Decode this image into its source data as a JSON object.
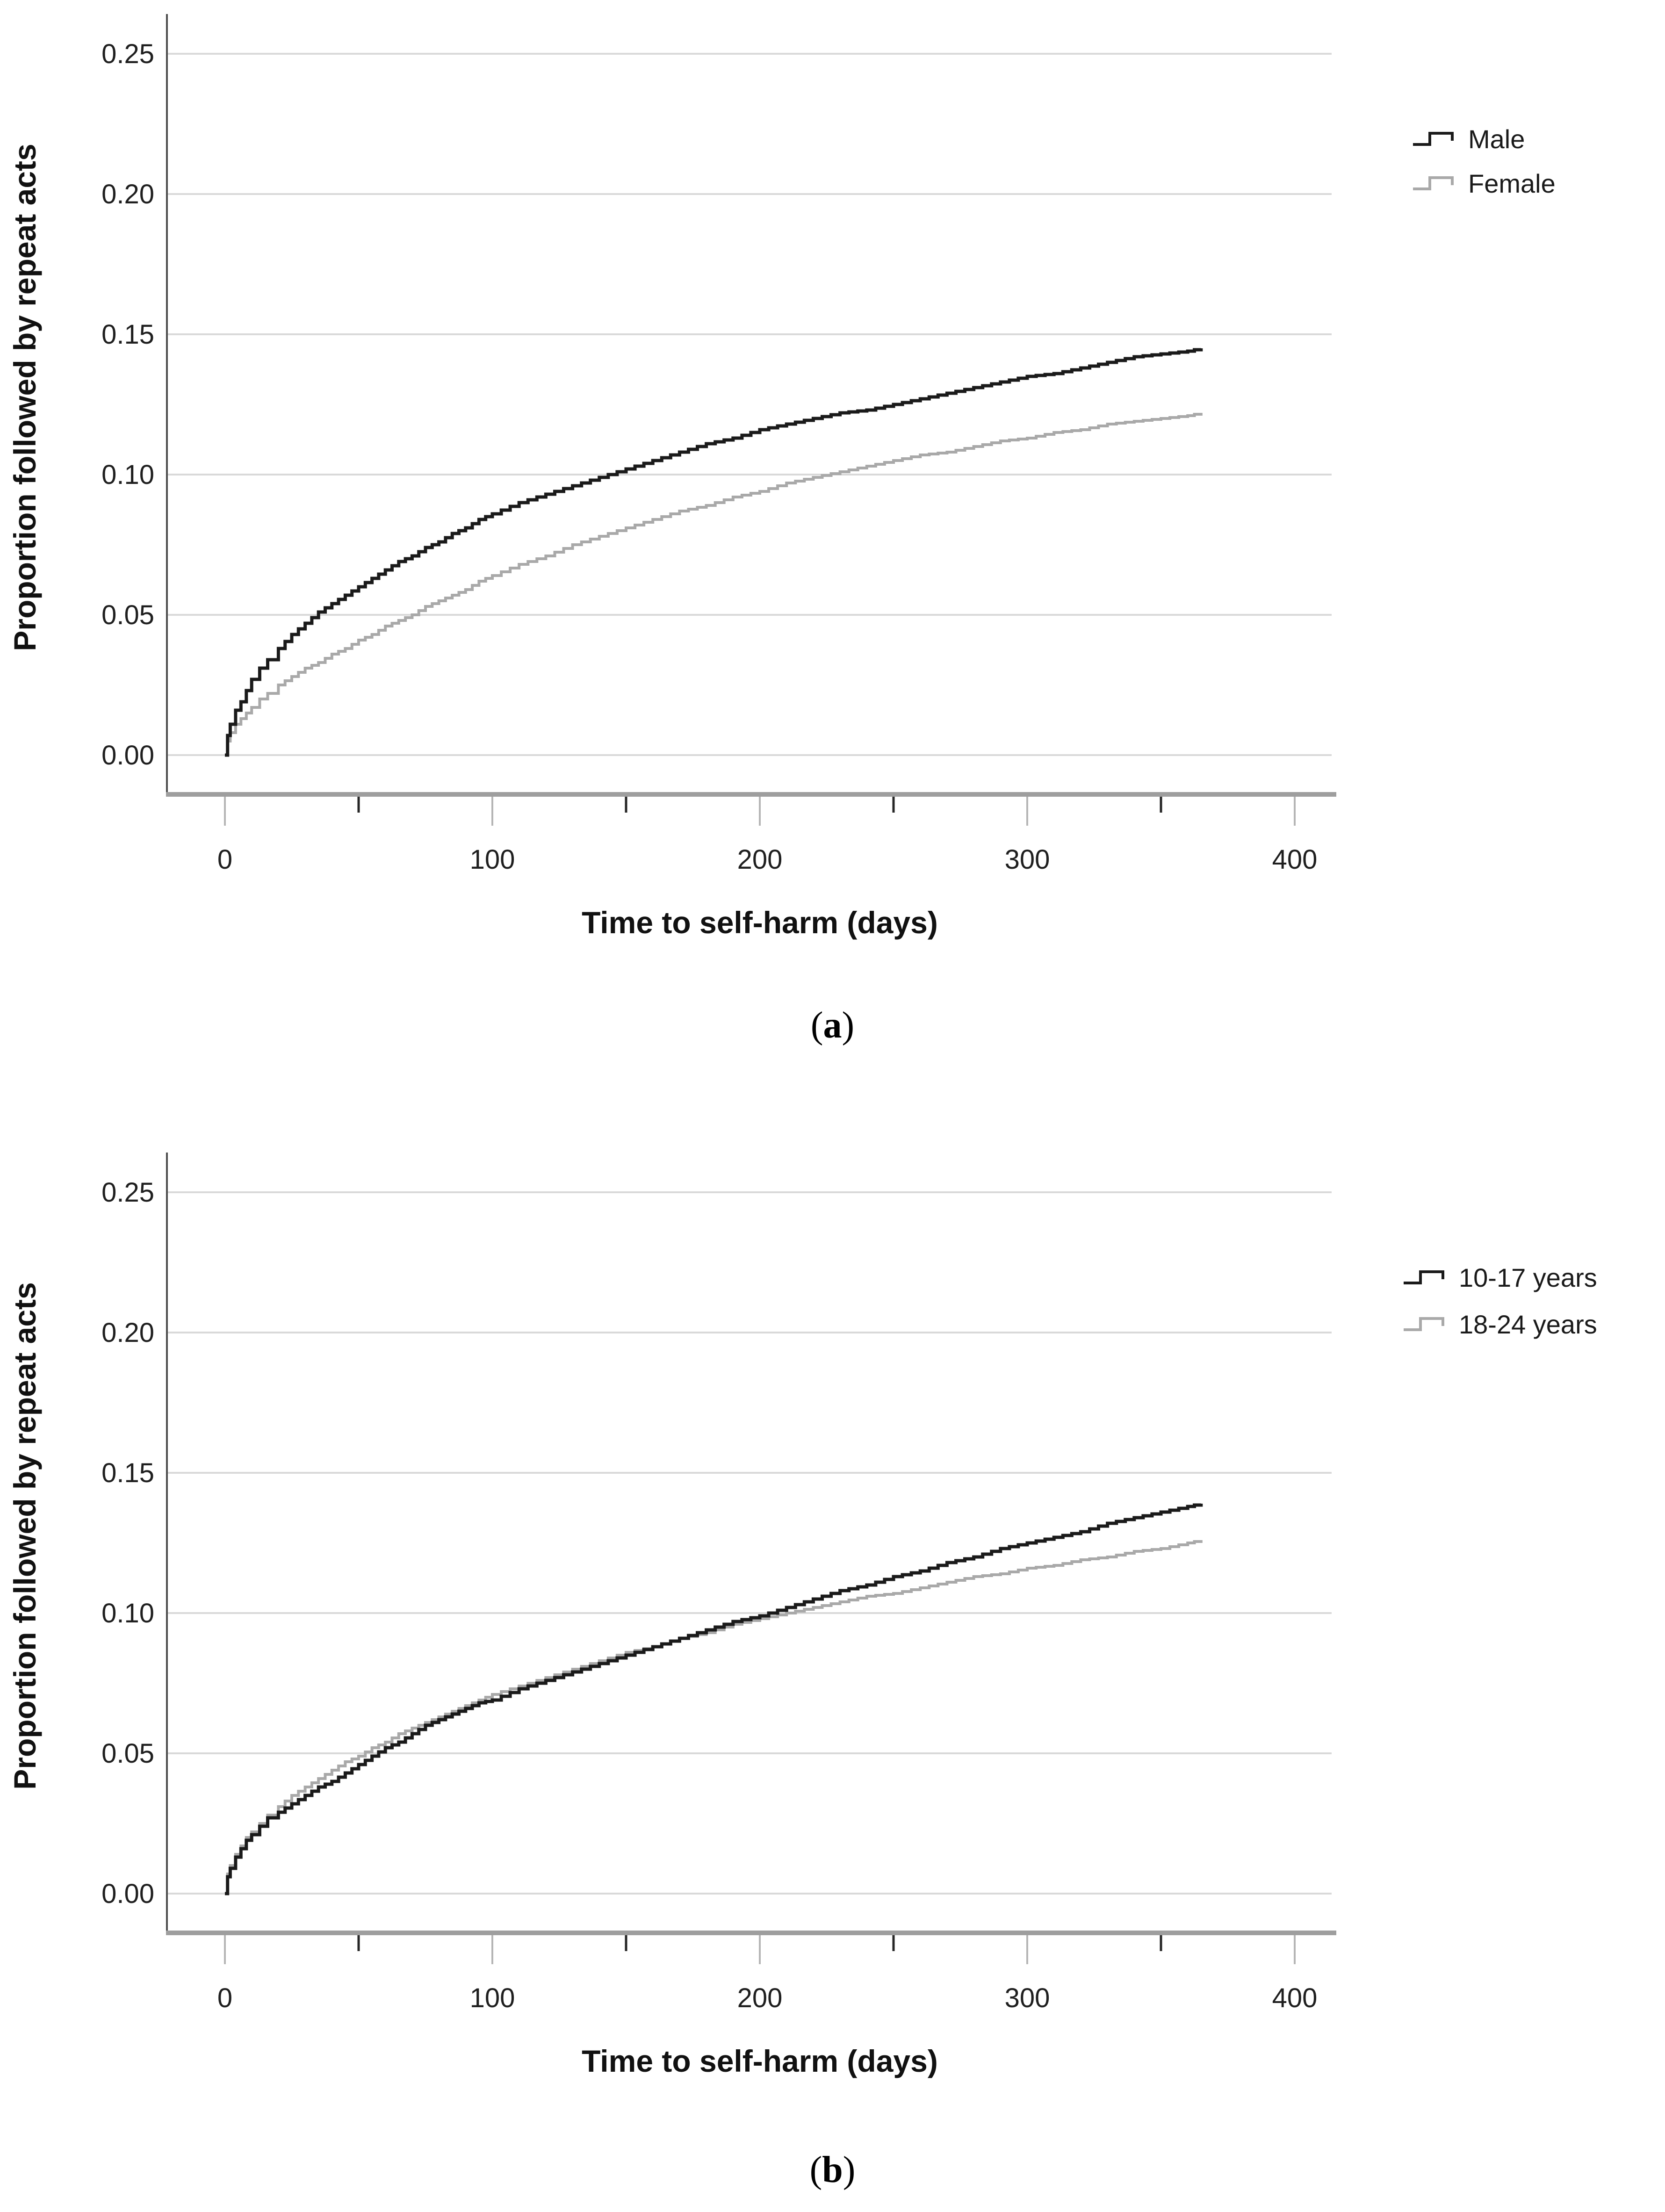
{
  "palette": {
    "background": "#ffffff",
    "gridline": "#d9d9d9",
    "axis_bar": "#9e9e9e",
    "y_axis_line": "#4d4d4d",
    "major_tick": "#b5b5b5",
    "minor_tick": "#262626",
    "text": "#1f1f1f",
    "series_black": "#1a1a1a",
    "series_gray": "#a9a9a9"
  },
  "chart_data": [
    {
      "id": "a",
      "type": "line",
      "subtype": "cumulative-incidence-step",
      "title": "",
      "caption_open": "(",
      "caption_letter": "a",
      "caption_close": ")",
      "xlabel": "Time to self-harm (days)",
      "ylabel": "Proportion followed by repeat acts",
      "xlim": [
        -20,
        430
      ],
      "ylim": [
        -0.012,
        0.268
      ],
      "grid": "horizontal",
      "legend_position": "right",
      "x_axis": {
        "title": "Time to self-harm (days)",
        "ticks": [
          {
            "label": "0",
            "value": 0
          },
          {
            "label": "100",
            "value": 100
          },
          {
            "label": "200",
            "value": 200
          },
          {
            "label": "300",
            "value": 300
          },
          {
            "label": "400",
            "value": 400
          }
        ],
        "minor_ticks": [
          50,
          150,
          250,
          350
        ]
      },
      "y_axis": {
        "title": "Proportion followed by repeat acts",
        "ticks": [
          {
            "label": "0.25",
            "value": 0.25
          },
          {
            "label": "0.20",
            "value": 0.2
          },
          {
            "label": "0.15",
            "value": 0.15
          },
          {
            "label": "0.10",
            "value": 0.1
          },
          {
            "label": "0.05",
            "value": 0.05
          },
          {
            "label": "0.00",
            "value": 0.0
          }
        ]
      },
      "series": [
        {
          "name": "Male",
          "color": "#1a1a1a",
          "stroke_width": 7,
          "points": [
            [
              0,
              0
            ],
            [
              1,
              0.007
            ],
            [
              2,
              0.011
            ],
            [
              4,
              0.016
            ],
            [
              6,
              0.019
            ],
            [
              8,
              0.023
            ],
            [
              10,
              0.027
            ],
            [
              13,
              0.031
            ],
            [
              16,
              0.034
            ],
            [
              20,
              0.038
            ],
            [
              25,
              0.043
            ],
            [
              30,
              0.047
            ],
            [
              35,
              0.051
            ],
            [
              40,
              0.054
            ],
            [
              45,
              0.057
            ],
            [
              50,
              0.06
            ],
            [
              55,
              0.063
            ],
            [
              60,
              0.066
            ],
            [
              65,
              0.069
            ],
            [
              70,
              0.071
            ],
            [
              75,
              0.074
            ],
            [
              80,
              0.076
            ],
            [
              85,
              0.079
            ],
            [
              90,
              0.081
            ],
            [
              95,
              0.084
            ],
            [
              100,
              0.086
            ],
            [
              110,
              0.09
            ],
            [
              120,
              0.093
            ],
            [
              130,
              0.096
            ],
            [
              140,
              0.099
            ],
            [
              150,
              0.102
            ],
            [
              160,
              0.105
            ],
            [
              170,
              0.108
            ],
            [
              180,
              0.111
            ],
            [
              190,
              0.113
            ],
            [
              200,
              0.116
            ],
            [
              210,
              0.118
            ],
            [
              220,
              0.12
            ],
            [
              230,
              0.122
            ],
            [
              240,
              0.123
            ],
            [
              250,
              0.125
            ],
            [
              260,
              0.127
            ],
            [
              270,
              0.129
            ],
            [
              280,
              0.131
            ],
            [
              290,
              0.133
            ],
            [
              300,
              0.135
            ],
            [
              310,
              0.136
            ],
            [
              320,
              0.138
            ],
            [
              330,
              0.14
            ],
            [
              340,
              0.142
            ],
            [
              350,
              0.143
            ],
            [
              360,
              0.144
            ],
            [
              365,
              0.145
            ]
          ]
        },
        {
          "name": "Female",
          "color": "#a9a9a9",
          "stroke_width": 6,
          "points": [
            [
              0,
              0
            ],
            [
              1,
              0.005
            ],
            [
              2,
              0.008
            ],
            [
              4,
              0.011
            ],
            [
              6,
              0.013
            ],
            [
              8,
              0.015
            ],
            [
              10,
              0.017
            ],
            [
              13,
              0.02
            ],
            [
              16,
              0.022
            ],
            [
              20,
              0.025
            ],
            [
              25,
              0.028
            ],
            [
              30,
              0.031
            ],
            [
              35,
              0.033
            ],
            [
              40,
              0.036
            ],
            [
              45,
              0.038
            ],
            [
              50,
              0.041
            ],
            [
              55,
              0.043
            ],
            [
              60,
              0.046
            ],
            [
              65,
              0.048
            ],
            [
              70,
              0.05
            ],
            [
              75,
              0.053
            ],
            [
              80,
              0.055
            ],
            [
              85,
              0.057
            ],
            [
              90,
              0.059
            ],
            [
              95,
              0.062
            ],
            [
              100,
              0.064
            ],
            [
              110,
              0.068
            ],
            [
              120,
              0.071
            ],
            [
              130,
              0.075
            ],
            [
              140,
              0.078
            ],
            [
              150,
              0.081
            ],
            [
              160,
              0.084
            ],
            [
              170,
              0.087
            ],
            [
              180,
              0.089
            ],
            [
              190,
              0.092
            ],
            [
              200,
              0.094
            ],
            [
              210,
              0.097
            ],
            [
              220,
              0.099
            ],
            [
              230,
              0.101
            ],
            [
              240,
              0.103
            ],
            [
              250,
              0.105
            ],
            [
              260,
              0.107
            ],
            [
              270,
              0.108
            ],
            [
              280,
              0.11
            ],
            [
              290,
              0.112
            ],
            [
              300,
              0.113
            ],
            [
              310,
              0.115
            ],
            [
              320,
              0.116
            ],
            [
              330,
              0.118
            ],
            [
              340,
              0.119
            ],
            [
              350,
              0.12
            ],
            [
              360,
              0.121
            ],
            [
              365,
              0.122
            ]
          ]
        }
      ]
    },
    {
      "id": "b",
      "type": "line",
      "subtype": "cumulative-incidence-step",
      "title": "",
      "caption_open": "(",
      "caption_letter": "b",
      "caption_close": ")",
      "xlabel": "Time to self-harm (days)",
      "ylabel": "Proportion followed by repeat acts",
      "xlim": [
        -20,
        430
      ],
      "ylim": [
        -0.012,
        0.268
      ],
      "grid": "horizontal",
      "legend_position": "right",
      "x_axis": {
        "title": "Time to self-harm (days)",
        "ticks": [
          {
            "label": "0",
            "value": 0
          },
          {
            "label": "100",
            "value": 100
          },
          {
            "label": "200",
            "value": 200
          },
          {
            "label": "300",
            "value": 300
          },
          {
            "label": "400",
            "value": 400
          }
        ],
        "minor_ticks": [
          50,
          150,
          250,
          350
        ]
      },
      "y_axis": {
        "title": "Proportion followed by repeat acts",
        "ticks": [
          {
            "label": "0.25",
            "value": 0.25
          },
          {
            "label": "0.20",
            "value": 0.2
          },
          {
            "label": "0.15",
            "value": 0.15
          },
          {
            "label": "0.10",
            "value": 0.1
          },
          {
            "label": "0.05",
            "value": 0.05
          },
          {
            "label": "0.00",
            "value": 0.0
          }
        ]
      },
      "series": [
        {
          "name": "10-17 years",
          "color": "#1a1a1a",
          "stroke_width": 7,
          "points": [
            [
              0,
              0
            ],
            [
              1,
              0.006
            ],
            [
              2,
              0.009
            ],
            [
              4,
              0.013
            ],
            [
              6,
              0.016
            ],
            [
              8,
              0.019
            ],
            [
              10,
              0.021
            ],
            [
              13,
              0.024
            ],
            [
              16,
              0.027
            ],
            [
              20,
              0.029
            ],
            [
              25,
              0.032
            ],
            [
              30,
              0.035
            ],
            [
              35,
              0.038
            ],
            [
              40,
              0.04
            ],
            [
              45,
              0.043
            ],
            [
              50,
              0.046
            ],
            [
              55,
              0.049
            ],
            [
              60,
              0.052
            ],
            [
              65,
              0.054
            ],
            [
              70,
              0.057
            ],
            [
              75,
              0.06
            ],
            [
              80,
              0.062
            ],
            [
              85,
              0.064
            ],
            [
              90,
              0.066
            ],
            [
              95,
              0.068
            ],
            [
              100,
              0.069
            ],
            [
              110,
              0.073
            ],
            [
              120,
              0.076
            ],
            [
              130,
              0.079
            ],
            [
              140,
              0.082
            ],
            [
              150,
              0.085
            ],
            [
              160,
              0.088
            ],
            [
              170,
              0.091
            ],
            [
              180,
              0.094
            ],
            [
              190,
              0.097
            ],
            [
              200,
              0.099
            ],
            [
              210,
              0.102
            ],
            [
              220,
              0.105
            ],
            [
              230,
              0.108
            ],
            [
              240,
              0.11
            ],
            [
              250,
              0.113
            ],
            [
              260,
              0.115
            ],
            [
              270,
              0.118
            ],
            [
              280,
              0.12
            ],
            [
              290,
              0.123
            ],
            [
              300,
              0.125
            ],
            [
              310,
              0.127
            ],
            [
              320,
              0.129
            ],
            [
              330,
              0.132
            ],
            [
              340,
              0.134
            ],
            [
              350,
              0.136
            ],
            [
              360,
              0.138
            ],
            [
              365,
              0.139
            ]
          ]
        },
        {
          "name": "18-24 years",
          "color": "#a9a9a9",
          "stroke_width": 6,
          "points": [
            [
              0,
              0
            ],
            [
              1,
              0.007
            ],
            [
              2,
              0.01
            ],
            [
              4,
              0.014
            ],
            [
              6,
              0.017
            ],
            [
              8,
              0.02
            ],
            [
              10,
              0.022
            ],
            [
              13,
              0.025
            ],
            [
              16,
              0.028
            ],
            [
              20,
              0.031
            ],
            [
              25,
              0.035
            ],
            [
              30,
              0.038
            ],
            [
              35,
              0.041
            ],
            [
              40,
              0.044
            ],
            [
              45,
              0.047
            ],
            [
              50,
              0.049
            ],
            [
              55,
              0.052
            ],
            [
              60,
              0.054
            ],
            [
              65,
              0.057
            ],
            [
              70,
              0.059
            ],
            [
              75,
              0.061
            ],
            [
              80,
              0.063
            ],
            [
              85,
              0.065
            ],
            [
              90,
              0.067
            ],
            [
              95,
              0.069
            ],
            [
              100,
              0.071
            ],
            [
              110,
              0.074
            ],
            [
              120,
              0.077
            ],
            [
              130,
              0.08
            ],
            [
              140,
              0.083
            ],
            [
              150,
              0.086
            ],
            [
              160,
              0.088
            ],
            [
              170,
              0.091
            ],
            [
              180,
              0.093
            ],
            [
              190,
              0.096
            ],
            [
              200,
              0.098
            ],
            [
              210,
              0.1
            ],
            [
              220,
              0.102
            ],
            [
              230,
              0.104
            ],
            [
              240,
              0.106
            ],
            [
              250,
              0.107
            ],
            [
              260,
              0.109
            ],
            [
              270,
              0.111
            ],
            [
              280,
              0.113
            ],
            [
              290,
              0.114
            ],
            [
              300,
              0.116
            ],
            [
              310,
              0.117
            ],
            [
              320,
              0.119
            ],
            [
              330,
              0.12
            ],
            [
              340,
              0.122
            ],
            [
              350,
              0.123
            ],
            [
              360,
              0.125
            ],
            [
              365,
              0.126
            ]
          ]
        }
      ]
    }
  ]
}
